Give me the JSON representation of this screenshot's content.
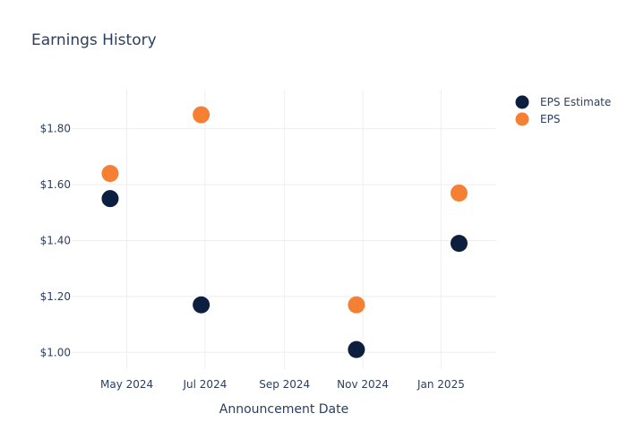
{
  "chart_data": {
    "type": "scatter",
    "title": "Earnings History",
    "xlabel": "Announcement Date",
    "ylabel": "",
    "x_ticks": [
      {
        "date": "2024-05-01",
        "label": "May 2024"
      },
      {
        "date": "2024-07-01",
        "label": "Jul 2024"
      },
      {
        "date": "2024-09-01",
        "label": "Sep 2024"
      },
      {
        "date": "2024-11-01",
        "label": "Nov 2024"
      },
      {
        "date": "2025-01-01",
        "label": "Jan 2025"
      }
    ],
    "y_ticks": [
      {
        "value": 1.0,
        "label": "$1.00"
      },
      {
        "value": 1.2,
        "label": "$1.20"
      },
      {
        "value": 1.4,
        "label": "$1.40"
      },
      {
        "value": 1.6,
        "label": "$1.60"
      },
      {
        "value": 1.8,
        "label": "$1.80"
      }
    ],
    "xlim": [
      "2024-03-19",
      "2025-02-13"
    ],
    "ylim": [
      0.94,
      1.94
    ],
    "grid": true,
    "legend_position": "top-right",
    "series": [
      {
        "name": "EPS Estimate",
        "color": "#0d1f3f",
        "points": [
          {
            "x": "2024-04-18",
            "y": 1.55
          },
          {
            "x": "2024-06-28",
            "y": 1.17
          },
          {
            "x": "2024-10-27",
            "y": 1.01
          },
          {
            "x": "2025-01-15",
            "y": 1.39
          }
        ]
      },
      {
        "name": "EPS",
        "color": "#f57f33",
        "points": [
          {
            "x": "2024-04-18",
            "y": 1.64
          },
          {
            "x": "2024-06-28",
            "y": 1.85
          },
          {
            "x": "2024-10-27",
            "y": 1.17
          },
          {
            "x": "2025-01-15",
            "y": 1.57
          }
        ]
      }
    ]
  }
}
